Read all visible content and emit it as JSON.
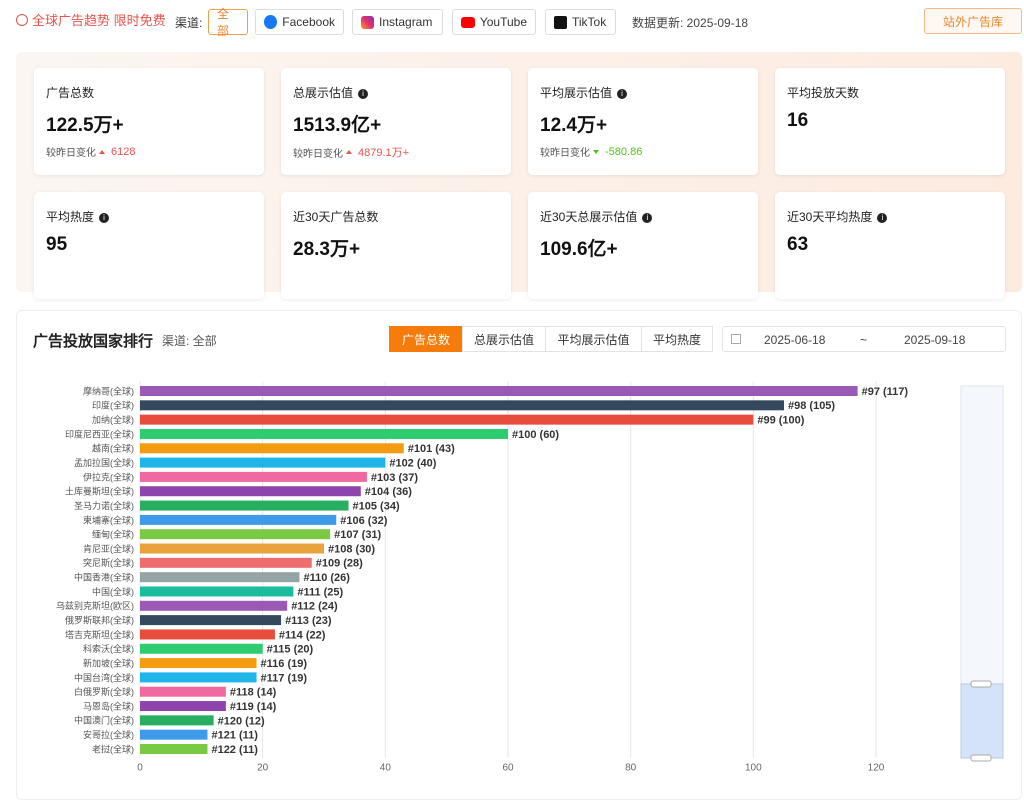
{
  "header": {
    "title": "全球广告趋势 限时免费",
    "channel_label": "渠道:",
    "channels": [
      "全部",
      "Facebook",
      "Instagram",
      "YouTube",
      "TikTok"
    ],
    "update": "数据更新: 2025-09-18",
    "button": "站外广告库"
  },
  "cards": [
    {
      "label": "广告总数",
      "value": "122.5万+",
      "info": false,
      "change_label": "较昨日变化",
      "change": "6128",
      "direction": "up"
    },
    {
      "label": "总展示估值",
      "value": "1513.9亿+",
      "info": true,
      "change_label": "较昨日变化",
      "change": "4879.1万+",
      "direction": "up"
    },
    {
      "label": "平均展示估值",
      "value": "12.4万+",
      "info": true,
      "change_label": "较昨日变化",
      "change": "-580.86",
      "direction": "down"
    },
    {
      "label": "平均投放天数",
      "value": "16",
      "info": false
    },
    {
      "label": "平均热度",
      "value": "95",
      "info": true
    },
    {
      "label": "近30天广告总数",
      "value": "28.3万+",
      "info": false
    },
    {
      "label": "近30天总展示估值",
      "value": "109.6亿+",
      "info": true
    },
    {
      "label": "近30天平均热度",
      "value": "63",
      "info": true
    }
  ],
  "ranking": {
    "title": "广告投放国家排行",
    "channel": "渠道: 全部",
    "tabs": [
      "广告总数",
      "总展示估值",
      "平均展示估值",
      "平均热度"
    ],
    "date_start": "2025-06-18",
    "date_sep": "~",
    "date_end": "2025-09-18"
  },
  "chart_data": {
    "type": "bar",
    "orientation": "horizontal",
    "categories": [
      "摩纳哥(全球)",
      "印度(全球)",
      "加纳(全球)",
      "印度尼西亚(全球)",
      "越南(全球)",
      "孟加拉国(全球)",
      "伊拉克(全球)",
      "土库曼斯坦(全球)",
      "圣马力诺(全球)",
      "柬埔寨(全球)",
      "缅甸(全球)",
      "肯尼亚(全球)",
      "突尼斯(全球)",
      "中国香港(全球)",
      "中国(全球)",
      "乌兹别克斯坦(欧区)",
      "俄罗斯联邦(全球)",
      "塔吉克斯坦(全球)",
      "科索沃(全球)",
      "新加坡(全球)",
      "中国台湾(全球)",
      "白俄罗斯(全球)",
      "马恩岛(全球)",
      "中国澳门(全球)",
      "安哥拉(全球)",
      "老挝(全球)"
    ],
    "values": [
      117,
      105,
      100,
      60,
      43,
      40,
      37,
      36,
      34,
      32,
      31,
      30,
      28,
      26,
      25,
      24,
      23,
      22,
      20,
      19,
      19,
      14,
      14,
      12,
      11,
      11
    ],
    "value_labels": [
      "#97 (117)",
      "#98 (105)",
      "#99 (100)",
      "#100 (60)",
      "#101 (43)",
      "#102 (40)",
      "#103 (37)",
      "#104 (36)",
      "#105 (34)",
      "#106 (32)",
      "#107 (31)",
      "#108 (30)",
      "#109 (28)",
      "#110 (26)",
      "#111 (25)",
      "#112 (24)",
      "#113 (23)",
      "#114 (22)",
      "#115 (20)",
      "#116 (19)",
      "#117 (19)",
      "#118 (14)",
      "#119 (14)",
      "#120 (12)",
      "#121 (11)",
      "#122 (11)"
    ],
    "colors": [
      "#9b59b6",
      "#34495e",
      "#e74c3c",
      "#2ecc71",
      "#f39c12",
      "#1fb5e8",
      "#f06aa0",
      "#8e44ad",
      "#27ae60",
      "#3d9be9",
      "#7ac943",
      "#e8a33d",
      "#ee6e6e",
      "#95a5a6",
      "#1abc9c"
    ],
    "xlim": [
      0,
      120
    ],
    "xticks": [
      0,
      20,
      40,
      60,
      80,
      100,
      120
    ],
    "grid": true
  }
}
